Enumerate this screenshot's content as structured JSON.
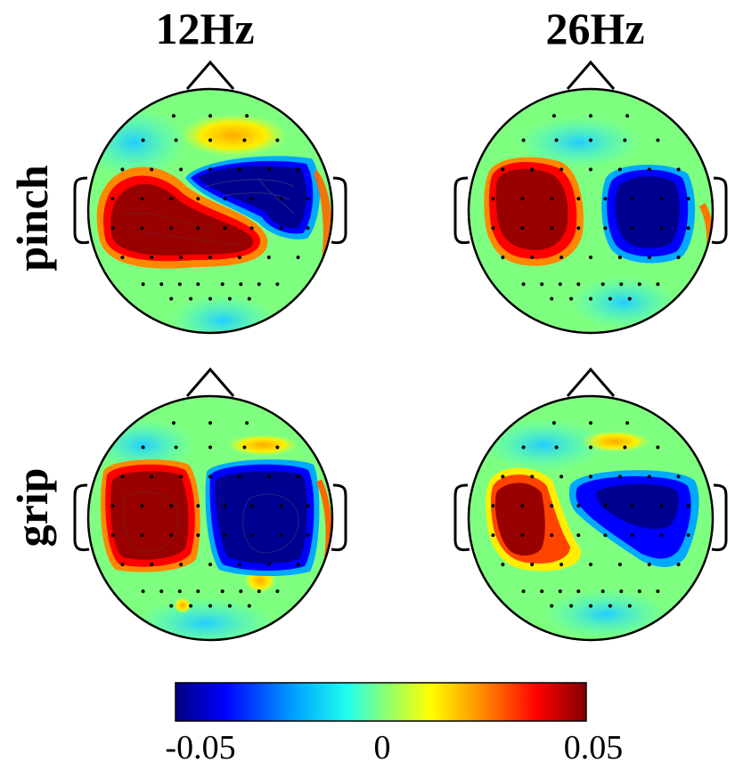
{
  "columns": [
    "12Hz",
    "26Hz"
  ],
  "rows": [
    "pinch",
    "grip"
  ],
  "colorbar": {
    "ticks": [
      "-0.05",
      "0",
      "0.05"
    ],
    "range": [
      -0.05,
      0.05
    ],
    "colormap": "jet",
    "stops": [
      "#000080",
      "#0000ff",
      "#00aaff",
      "#22ffee",
      "#7fff7f",
      "#ffff00",
      "#ff8800",
      "#ff0000",
      "#800000"
    ]
  },
  "head_outline_color": "#000000",
  "background_value_color": "#7fff7f",
  "maps": [
    {
      "column": "12Hz",
      "row": "pinch"
    },
    {
      "column": "26Hz",
      "row": "pinch"
    },
    {
      "column": "12Hz",
      "row": "grip"
    },
    {
      "column": "26Hz",
      "row": "grip"
    }
  ]
}
